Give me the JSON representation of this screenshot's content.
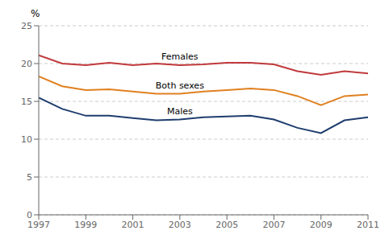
{
  "chart_data": {
    "type": "line",
    "x": [
      1997,
      1998,
      1999,
      2000,
      2001,
      2002,
      2003,
      2004,
      2005,
      2006,
      2007,
      2008,
      2009,
      2010,
      2011
    ],
    "series": [
      {
        "name": "Females",
        "color": "#c0393b",
        "values": [
          21.1,
          20.0,
          19.8,
          20.1,
          19.8,
          20.0,
          19.8,
          19.9,
          20.1,
          20.1,
          19.9,
          19.0,
          18.5,
          19.0,
          18.7
        ]
      },
      {
        "name": "Both sexes",
        "color": "#e08020",
        "values": [
          18.3,
          17.0,
          16.5,
          16.6,
          16.3,
          16.0,
          16.0,
          16.3,
          16.5,
          16.7,
          16.5,
          15.7,
          14.5,
          15.7,
          15.9
        ]
      },
      {
        "name": "Males",
        "color": "#1e3d6e",
        "values": [
          15.5,
          14.0,
          13.1,
          13.1,
          12.8,
          12.5,
          12.6,
          12.9,
          13.0,
          13.1,
          12.6,
          11.5,
          10.8,
          12.5,
          12.9
        ]
      }
    ],
    "ylabel": "%",
    "xlim": [
      1997,
      2011
    ],
    "xticks": [
      1997,
      1999,
      2001,
      2003,
      2005,
      2007,
      2009,
      2011
    ],
    "ylim": [
      0,
      25
    ],
    "yticks": [
      0,
      5,
      10,
      15,
      20,
      25
    ],
    "grid": true
  }
}
